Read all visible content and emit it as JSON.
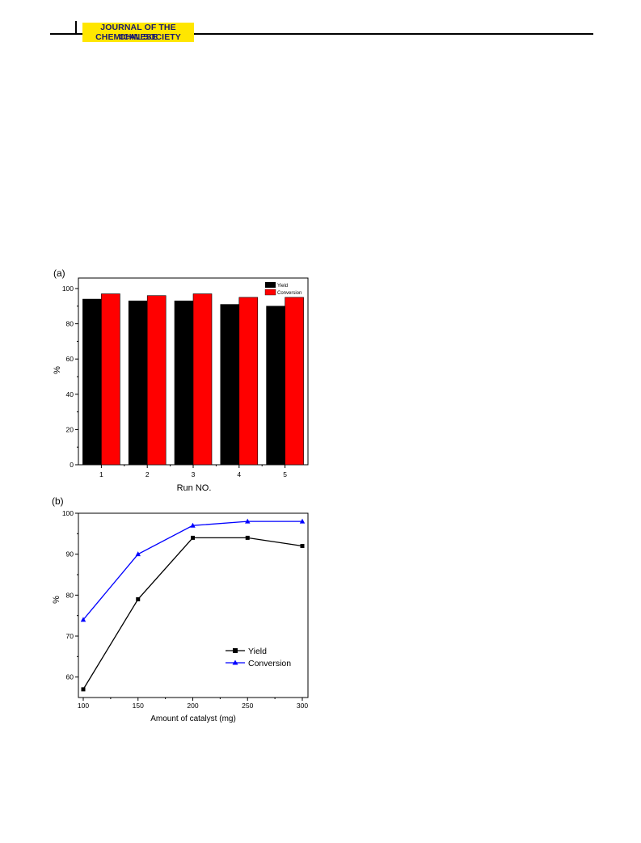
{
  "header": {
    "journal_line1": "JOURNAL OF THE CHINESE",
    "journal_line2": "CHEMICAL SOCIETY",
    "badge_color": "#ffe600",
    "text_color": "#1a1a6e"
  },
  "chart_data": [
    {
      "panel_label": "(a)",
      "type": "bar",
      "categories": [
        "1",
        "2",
        "3",
        "4",
        "5"
      ],
      "series": [
        {
          "name": "Yield",
          "values": [
            94,
            93,
            93,
            91,
            90
          ],
          "color": "#000000"
        },
        {
          "name": "Conversion",
          "values": [
            97,
            96,
            97,
            95,
            95
          ],
          "color": "#ff0000"
        }
      ],
      "xlabel": "Run NO.",
      "ylabel": "%",
      "ylim": [
        0,
        100
      ],
      "yticks": [
        "0",
        "20",
        "40",
        "60",
        "80",
        "100"
      ],
      "legend_position": "top-right",
      "grid": false
    },
    {
      "panel_label": "(b)",
      "type": "line",
      "x": [
        100,
        150,
        200,
        250,
        300
      ],
      "xticks": [
        "100",
        "150",
        "200",
        "250",
        "300"
      ],
      "series": [
        {
          "name": "Yield",
          "values": [
            57,
            79,
            94,
            94,
            92
          ],
          "color": "#000000",
          "marker": "square"
        },
        {
          "name": "Conversion",
          "values": [
            74,
            90,
            97,
            98,
            98
          ],
          "color": "#0000ff",
          "marker": "triangle"
        }
      ],
      "xlabel": "Amount of catalyst (mg)",
      "ylabel": "%",
      "xlim": [
        100,
        300
      ],
      "ylim": [
        55,
        100
      ],
      "yticks": [
        "60",
        "70",
        "80",
        "90",
        "100"
      ],
      "legend_position": "bottom-right",
      "grid": false
    }
  ]
}
